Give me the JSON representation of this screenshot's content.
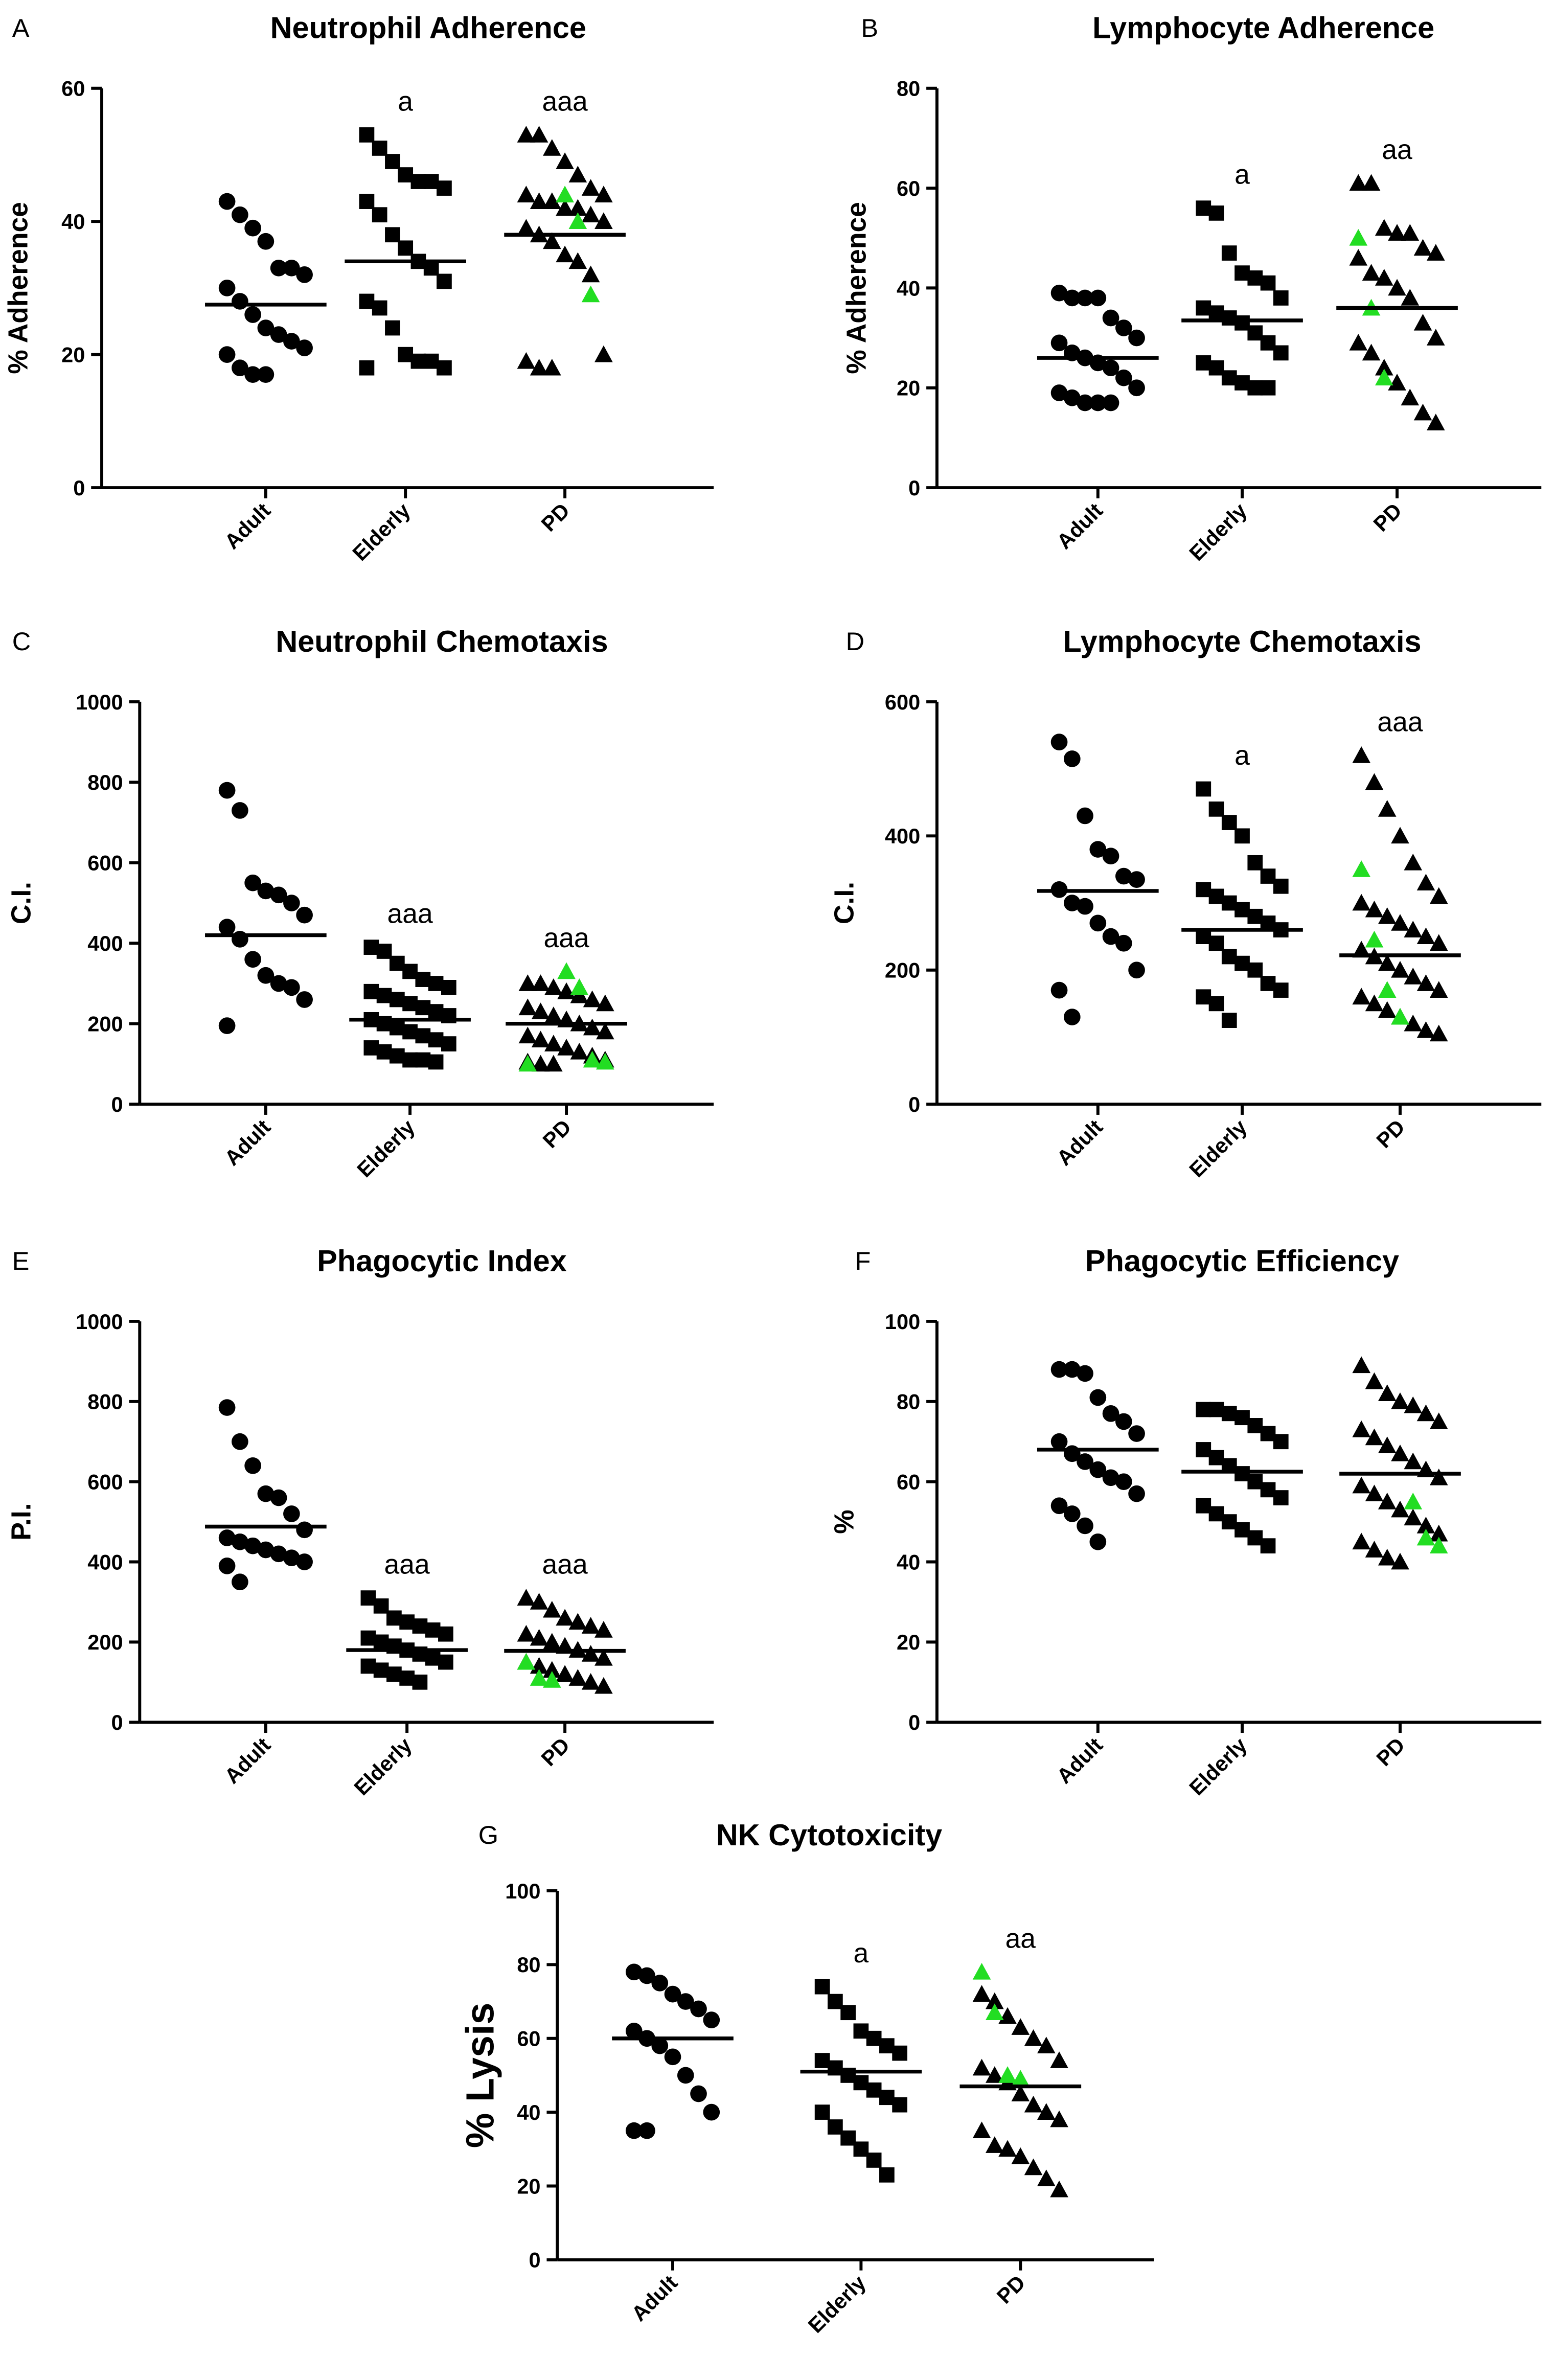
{
  "chart_data": [
    {
      "type": "dot",
      "panel": "A",
      "title": "Neutrophil Adherence",
      "ylabel": "% Adherence",
      "ylim": [
        0,
        60
      ],
      "yticks": [
        0,
        20,
        40,
        60
      ],
      "groups": [
        {
          "name": "Adult",
          "marker": "circle",
          "mean": 27.5,
          "values": [
            43,
            41,
            39,
            37,
            33,
            33,
            32,
            30,
            28,
            26,
            24,
            23,
            22,
            21,
            20,
            18,
            17,
            17
          ]
        },
        {
          "name": "Elderly",
          "marker": "square",
          "mean": 34,
          "annotation": "a",
          "values": [
            53,
            51,
            49,
            47,
            46,
            46,
            45,
            43,
            41,
            38,
            36,
            34,
            33,
            31,
            28,
            27,
            24,
            20,
            19,
            19,
            18,
            18
          ]
        },
        {
          "name": "PD",
          "marker": "triangle",
          "mean": 38,
          "annotation": "aaa",
          "values": [
            53,
            53,
            51,
            49,
            47,
            45,
            44,
            44,
            43,
            43,
            42,
            42,
            41,
            40,
            39,
            38,
            37,
            35,
            34,
            32,
            20,
            19,
            18,
            18
          ],
          "highlight": {
            "color": "#22dd22",
            "values": [
              44,
              40,
              29
            ]
          }
        }
      ]
    },
    {
      "type": "dot",
      "panel": "B",
      "title": "Lymphocyte Adherence",
      "ylabel": "% Adherence",
      "ylim": [
        0,
        80
      ],
      "yticks": [
        0,
        20,
        40,
        60,
        80
      ],
      "groups": [
        {
          "name": "Adult",
          "marker": "circle",
          "mean": 26,
          "values": [
            39,
            38,
            38,
            38,
            34,
            32,
            30,
            29,
            27,
            26,
            25,
            24,
            22,
            20,
            19,
            18,
            17,
            17,
            17
          ]
        },
        {
          "name": "Elderly",
          "marker": "square",
          "mean": 33.5,
          "annotation": "a",
          "values": [
            56,
            55,
            47,
            43,
            42,
            41,
            38,
            36,
            35,
            34,
            33,
            31,
            29,
            27,
            25,
            24,
            22,
            21,
            20,
            20
          ]
        },
        {
          "name": "PD",
          "marker": "triangle",
          "mean": 36,
          "annotation": "aa",
          "values": [
            61,
            61,
            52,
            51,
            51,
            48,
            47,
            46,
            43,
            42,
            40,
            38,
            33,
            30,
            29,
            27,
            24,
            21,
            18,
            15,
            13
          ],
          "highlight": {
            "color": "#22dd22",
            "values": [
              50,
              36,
              22
            ]
          }
        }
      ]
    },
    {
      "type": "dot",
      "panel": "C",
      "title": "Neutrophil Chemotaxis",
      "ylabel": "C.I.",
      "ylim": [
        0,
        1000
      ],
      "yticks": [
        0,
        200,
        400,
        600,
        800,
        1000
      ],
      "groups": [
        {
          "name": "Adult",
          "marker": "circle",
          "mean": 420,
          "values": [
            780,
            730,
            550,
            530,
            520,
            500,
            470,
            440,
            410,
            360,
            320,
            300,
            290,
            260,
            195
          ]
        },
        {
          "name": "Elderly",
          "marker": "square",
          "mean": 210,
          "annotation": "aaa",
          "values": [
            390,
            380,
            350,
            330,
            310,
            300,
            290,
            280,
            270,
            260,
            250,
            240,
            230,
            220,
            210,
            200,
            190,
            180,
            170,
            160,
            150,
            140,
            130,
            120,
            110,
            110,
            105
          ]
        },
        {
          "name": "PD",
          "marker": "triangle",
          "mean": 200,
          "annotation": "aaa",
          "values": [
            300,
            300,
            290,
            280,
            270,
            260,
            250,
            240,
            230,
            220,
            210,
            200,
            190,
            180,
            170,
            160,
            150,
            140,
            130,
            120,
            110,
            105,
            100,
            100
          ],
          "highlight": {
            "color": "#22dd22",
            "values": [
              330,
              290,
              110,
              105,
              100
            ]
          }
        }
      ]
    },
    {
      "type": "dot",
      "panel": "D",
      "title": "Lymphocyte Chemotaxis",
      "ylabel": "C.I.",
      "ylim": [
        0,
        600
      ],
      "yticks": [
        0,
        200,
        400,
        600
      ],
      "groups": [
        {
          "name": "Adult",
          "marker": "circle",
          "mean": 318,
          "values": [
            540,
            515,
            430,
            380,
            370,
            340,
            335,
            320,
            300,
            295,
            270,
            250,
            240,
            200,
            170,
            130
          ]
        },
        {
          "name": "Elderly",
          "marker": "square",
          "mean": 260,
          "annotation": "a",
          "values": [
            470,
            440,
            420,
            400,
            360,
            340,
            325,
            320,
            310,
            300,
            290,
            280,
            270,
            260,
            250,
            240,
            220,
            210,
            200,
            180,
            170,
            160,
            150,
            125
          ]
        },
        {
          "name": "PD",
          "marker": "triangle",
          "mean": 222,
          "annotation": "aaa",
          "values": [
            520,
            480,
            440,
            400,
            360,
            330,
            310,
            300,
            290,
            280,
            270,
            260,
            250,
            240,
            230,
            220,
            210,
            200,
            190,
            180,
            170,
            160,
            150,
            140,
            130,
            120,
            110,
            105
          ],
          "highlight": {
            "color": "#22dd22",
            "values": [
              350,
              245,
              170,
              130
            ]
          }
        }
      ]
    },
    {
      "type": "dot",
      "panel": "E",
      "title": "Phagocytic Index",
      "ylabel": "P.I.",
      "ylim": [
        0,
        1000
      ],
      "yticks": [
        0,
        200,
        400,
        600,
        800,
        1000
      ],
      "groups": [
        {
          "name": "Adult",
          "marker": "circle",
          "mean": 488,
          "values": [
            785,
            700,
            640,
            570,
            560,
            520,
            480,
            460,
            450,
            440,
            430,
            420,
            410,
            400,
            390,
            350
          ]
        },
        {
          "name": "Elderly",
          "marker": "square",
          "mean": 180,
          "annotation": "aaa",
          "values": [
            310,
            290,
            260,
            250,
            240,
            230,
            220,
            210,
            200,
            190,
            180,
            170,
            160,
            150,
            140,
            130,
            120,
            110,
            100
          ]
        },
        {
          "name": "PD",
          "marker": "triangle",
          "mean": 178,
          "annotation": "aaa",
          "values": [
            310,
            300,
            280,
            260,
            250,
            240,
            230,
            220,
            210,
            200,
            190,
            180,
            170,
            160,
            150,
            140,
            130,
            120,
            110,
            100,
            90
          ],
          "highlight": {
            "color": "#22dd22",
            "values": [
              150,
              110,
              105
            ]
          }
        }
      ]
    },
    {
      "type": "dot",
      "panel": "F",
      "title": "Phagocytic Efficiency",
      "ylabel": "%",
      "ylim": [
        0,
        100
      ],
      "yticks": [
        0,
        20,
        40,
        60,
        80,
        100
      ],
      "groups": [
        {
          "name": "Adult",
          "marker": "circle",
          "mean": 68,
          "values": [
            88,
            88,
            87,
            81,
            77,
            75,
            72,
            70,
            67,
            65,
            63,
            61,
            60,
            57,
            54,
            52,
            49,
            45
          ]
        },
        {
          "name": "Elderly",
          "marker": "square",
          "mean": 62.5,
          "values": [
            78,
            78,
            77,
            76,
            74,
            72,
            70,
            68,
            66,
            64,
            62,
            60,
            58,
            56,
            54,
            52,
            50,
            48,
            46,
            44
          ]
        },
        {
          "name": "PD",
          "marker": "triangle",
          "mean": 62,
          "values": [
            89,
            85,
            82,
            80,
            79,
            77,
            75,
            73,
            71,
            69,
            67,
            65,
            63,
            61,
            59,
            57,
            55,
            53,
            51,
            49,
            47,
            45,
            43,
            41,
            40
          ],
          "highlight": {
            "color": "#22dd22",
            "values": [
              55,
              46,
              44
            ]
          }
        }
      ]
    },
    {
      "type": "dot",
      "panel": "G",
      "title": "NK Cytotoxicity",
      "ylabel": "% Lysis",
      "ylim": [
        0,
        100
      ],
      "yticks": [
        0,
        20,
        40,
        60,
        80,
        100
      ],
      "groups": [
        {
          "name": "Adult",
          "marker": "circle",
          "mean": 60,
          "values": [
            78,
            77,
            75,
            72,
            70,
            68,
            65,
            62,
            60,
            58,
            55,
            50,
            45,
            40,
            35,
            35
          ]
        },
        {
          "name": "Elderly",
          "marker": "square",
          "mean": 51,
          "annotation": "a",
          "values": [
            74,
            70,
            67,
            62,
            60,
            58,
            56,
            54,
            52,
            50,
            48,
            46,
            44,
            42,
            40,
            36,
            33,
            30,
            27,
            23
          ]
        },
        {
          "name": "PD",
          "marker": "triangle",
          "mean": 47,
          "annotation": "aa",
          "values": [
            72,
            70,
            66,
            63,
            60,
            58,
            54,
            52,
            50,
            48,
            45,
            42,
            40,
            38,
            35,
            31,
            30,
            28,
            25,
            22,
            19
          ],
          "highlight": {
            "color": "#22dd22",
            "values": [
              78,
              67,
              50,
              49
            ]
          }
        }
      ]
    }
  ]
}
